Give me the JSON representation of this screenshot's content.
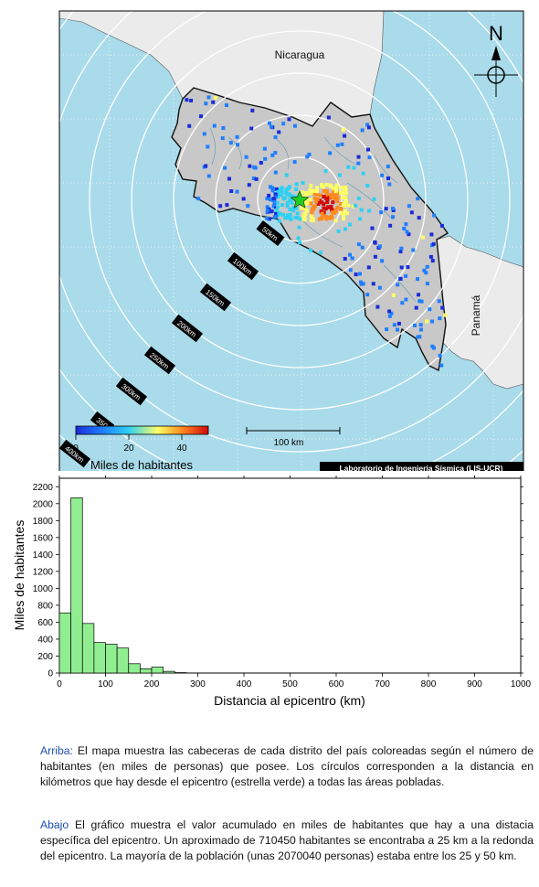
{
  "map": {
    "country_label_north": "Nicaragua",
    "country_label_east": "Panamá",
    "compass_letter": "N",
    "scale_bar_label": "100 km",
    "credit": "Laboratorio de Ingeniería Sísmica (LIS-UCR)",
    "colorbar": {
      "title": "Miles de habitantes",
      "ticks": [
        "0",
        "20",
        "40"
      ],
      "range": [
        0,
        50
      ],
      "stops": [
        "#1a2cd9",
        "#1f7fff",
        "#2fd1f2",
        "#ffff66",
        "#ff8a1f",
        "#d10a0a"
      ]
    },
    "ring_labels": [
      "50km",
      "100km",
      "150km",
      "200km",
      "250km",
      "300km",
      "350",
      "400km"
    ],
    "colors": {
      "sea": "#a9dbea",
      "land_cr": "#c8c8c8",
      "land_neighbors": "#ebebeb",
      "epicenter_star": "#22cc22"
    }
  },
  "chart_data": {
    "type": "bar",
    "bin_width_km": 25,
    "x_bin_starts": [
      0,
      25,
      50,
      75,
      100,
      125,
      150,
      175,
      200,
      225,
      250
    ],
    "values": [
      710,
      2070,
      585,
      360,
      340,
      295,
      110,
      50,
      70,
      20,
      5
    ],
    "xlabel": "Distancia al epicentro (km)",
    "ylabel": "Miles de habitantes",
    "xlim": [
      0,
      1000
    ],
    "ylim": [
      0,
      2300
    ],
    "xticks": [
      0,
      100,
      200,
      300,
      400,
      500,
      600,
      700,
      800,
      900,
      1000
    ],
    "yticks": [
      0,
      200,
      400,
      600,
      800,
      1000,
      1200,
      1400,
      1600,
      1800,
      2000,
      2200
    ],
    "bar_color": "#90ee90",
    "grid": false
  },
  "captions": {
    "top_lead": "Arriba:",
    "top_text": " El mapa muestra las cabeceras de cada distrito del país coloreadas según el número de habitantes (en miles de personas) que posee.  Los círculos corresponden a la distancia en kilómetros que hay desde el epicentro (estrella verde) a todas las áreas pobladas.",
    "bottom_lead": "Abajo",
    "bottom_text": " El gráfico muestra el valor acumulado en miles de habitantes que hay a una distacia específica del epicentro.  Un aproximado de 710450 habitantes se encontraba a 25 km a la redonda del epicentro.  La mayoría de la población (unas 2070040 personas) estaba entre los 25 y 50 km."
  }
}
